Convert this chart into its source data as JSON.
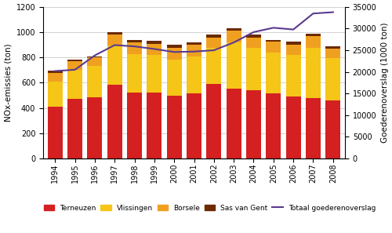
{
  "years": [
    1994,
    1995,
    1996,
    1997,
    1998,
    1999,
    2000,
    2001,
    2002,
    2003,
    2004,
    2005,
    2006,
    2007,
    2008
  ],
  "terneuzen": [
    410,
    472,
    487,
    582,
    520,
    525,
    500,
    518,
    590,
    555,
    540,
    513,
    488,
    478,
    457
  ],
  "vlissingen": [
    200,
    230,
    245,
    310,
    305,
    295,
    285,
    290,
    285,
    365,
    335,
    325,
    330,
    400,
    340
  ],
  "borsele": [
    68,
    68,
    68,
    90,
    95,
    90,
    90,
    90,
    85,
    90,
    85,
    85,
    85,
    90,
    75
  ],
  "sas_van_gent": [
    18,
    10,
    10,
    18,
    18,
    22,
    28,
    22,
    22,
    22,
    20,
    18,
    22,
    22,
    18
  ],
  "goederenoverslag": [
    20200,
    20500,
    23800,
    26200,
    25900,
    25300,
    24600,
    24700,
    25000,
    26800,
    29200,
    30200,
    29800,
    33500,
    33800
  ],
  "colors": {
    "terneuzen": "#d42020",
    "vlissingen": "#f5c518",
    "borsele": "#f0a020",
    "sas_van_gent": "#6b2a00",
    "goederenoverslag": "#5b3a8e"
  },
  "ylabel_left": "NOx-emissies (ton)",
  "ylabel_right": "Goederenoverslag (1000 ton)",
  "ylim_left": [
    0,
    1200
  ],
  "ylim_right": [
    0,
    35000
  ],
  "yticks_left": [
    0,
    200,
    400,
    600,
    800,
    1000,
    1200
  ],
  "yticks_right": [
    0,
    5000,
    10000,
    15000,
    20000,
    25000,
    30000,
    35000
  ],
  "legend_labels": [
    "Terneuzen",
    "Vlissingen",
    "Borsele",
    "Sas van Gent",
    "Totaal goederenoverslag"
  ],
  "bg_color": "#ffffff"
}
